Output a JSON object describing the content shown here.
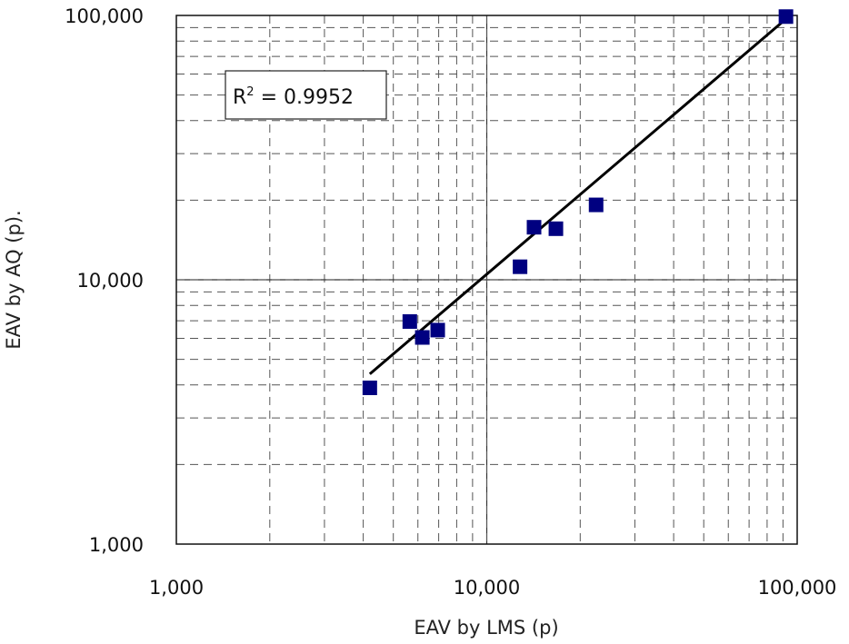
{
  "chart_data": {
    "type": "scatter",
    "xlabel": "EAV by LMS (p)",
    "ylabel": "EAV by AQ (p).",
    "x_scale": "log",
    "y_scale": "log",
    "xlim": [
      1000,
      100000
    ],
    "ylim": [
      1000,
      100000
    ],
    "x_tick_labels": [
      "1,000",
      "10,000",
      "100,000"
    ],
    "y_tick_labels": [
      "1,000",
      "10,000",
      "100,000"
    ],
    "grid": "major solid, minor dashed",
    "marker_color": "#000080",
    "points": [
      {
        "x": 4200,
        "y": 3900
      },
      {
        "x": 5650,
        "y": 6950
      },
      {
        "x": 6200,
        "y": 6050
      },
      {
        "x": 6950,
        "y": 6450
      },
      {
        "x": 12800,
        "y": 11200
      },
      {
        "x": 14200,
        "y": 15800
      },
      {
        "x": 16700,
        "y": 15600
      },
      {
        "x": 22500,
        "y": 19200
      },
      {
        "x": 92000,
        "y": 99000
      }
    ],
    "trendline": {
      "x": [
        4200,
        92000
      ],
      "y": [
        4400,
        97000
      ]
    },
    "annotation": {
      "prefix": "R",
      "superscript": "2",
      "text": " = 0.9952"
    }
  }
}
